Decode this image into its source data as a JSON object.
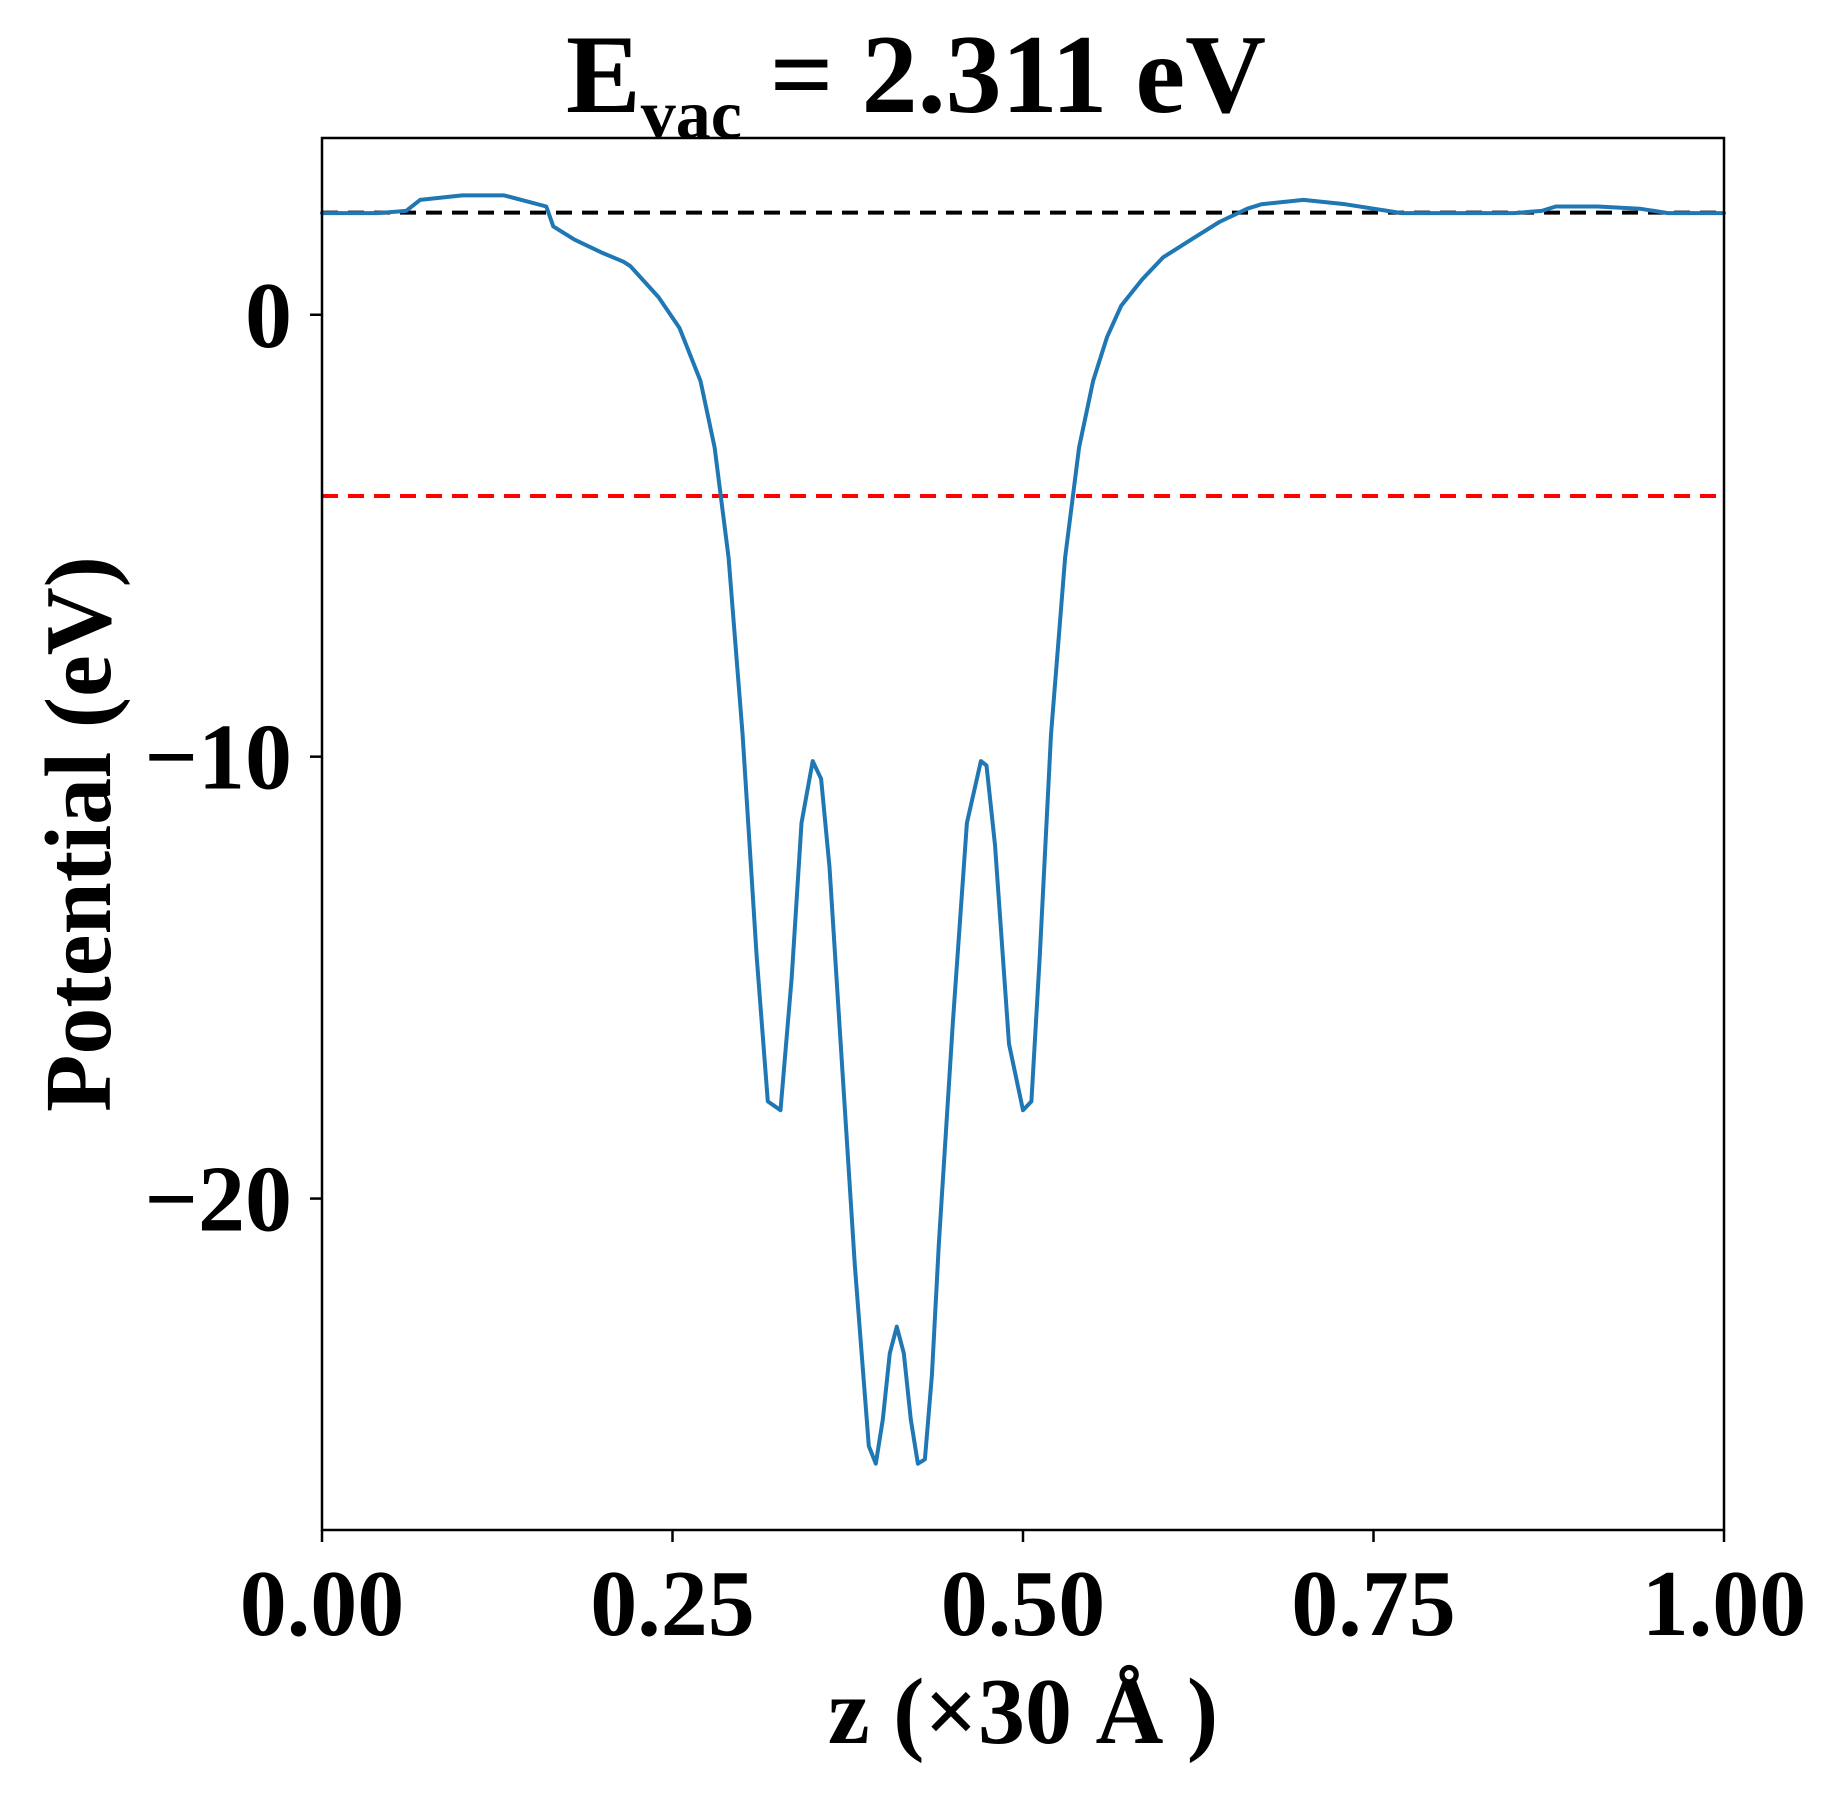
{
  "chart_data": {
    "type": "line",
    "title": {
      "main": "E",
      "sub": "vac",
      "rest": " = 2.311 eV"
    },
    "xlabel": "z (×30 Å )",
    "ylabel": "Potential (eV)",
    "xlim": [
      0.0,
      1.0
    ],
    "ylim": [
      -27.5,
      4.0
    ],
    "xticks": [
      0.0,
      0.25,
      0.5,
      0.75,
      1.0
    ],
    "xtick_labels": [
      "0.00",
      "0.25",
      "0.50",
      "0.75",
      "1.00"
    ],
    "yticks": [
      0,
      -10,
      -20
    ],
    "ytick_labels": [
      "0",
      "−10",
      "−20"
    ],
    "grid": false,
    "reference_lines": [
      {
        "y": 2.311,
        "color": "#000000",
        "style": "dashed"
      },
      {
        "y": -4.1,
        "color": "#ff0000",
        "style": "dashed"
      }
    ],
    "series": [
      {
        "color": "#1f77b4",
        "x": [
          0.0,
          0.04,
          0.06,
          0.07,
          0.1,
          0.13,
          0.16,
          0.165,
          0.18,
          0.2,
          0.215,
          0.22,
          0.24,
          0.255,
          0.27,
          0.28,
          0.29,
          0.3,
          0.31,
          0.318,
          0.327,
          0.335,
          0.342,
          0.35,
          0.356,
          0.362,
          0.37,
          0.38,
          0.39,
          0.395,
          0.4,
          0.405,
          0.41,
          0.415,
          0.42,
          0.425,
          0.43,
          0.435,
          0.44,
          0.45,
          0.46,
          0.47,
          0.474,
          0.48,
          0.49,
          0.5,
          0.506,
          0.512,
          0.52,
          0.53,
          0.54,
          0.55,
          0.56,
          0.57,
          0.585,
          0.6,
          0.62,
          0.64,
          0.66,
          0.67,
          0.7,
          0.73,
          0.76,
          0.77,
          0.8,
          0.85,
          0.87,
          0.88,
          0.91,
          0.94,
          0.95,
          0.96,
          1.0
        ],
        "y": [
          2.3,
          2.3,
          2.35,
          2.6,
          2.7,
          2.7,
          2.45,
          2.0,
          1.7,
          1.4,
          1.2,
          1.1,
          0.4,
          -0.3,
          -1.5,
          -3.0,
          -5.5,
          -9.5,
          -14.5,
          -17.8,
          -18.0,
          -15.0,
          -11.5,
          -10.1,
          -10.5,
          -12.5,
          -16.5,
          -21.5,
          -25.6,
          -26.0,
          -25.0,
          -23.5,
          -22.9,
          -23.5,
          -25.0,
          -26.0,
          -25.9,
          -24.0,
          -21.0,
          -16.0,
          -11.5,
          -10.1,
          -10.2,
          -12.0,
          -16.5,
          -18.0,
          -17.8,
          -14.5,
          -9.5,
          -5.5,
          -3.0,
          -1.5,
          -0.5,
          0.2,
          0.8,
          1.3,
          1.7,
          2.1,
          2.4,
          2.5,
          2.6,
          2.5,
          2.35,
          2.3,
          2.3,
          2.3,
          2.35,
          2.45,
          2.45,
          2.4,
          2.35,
          2.3,
          2.3
        ]
      }
    ]
  }
}
